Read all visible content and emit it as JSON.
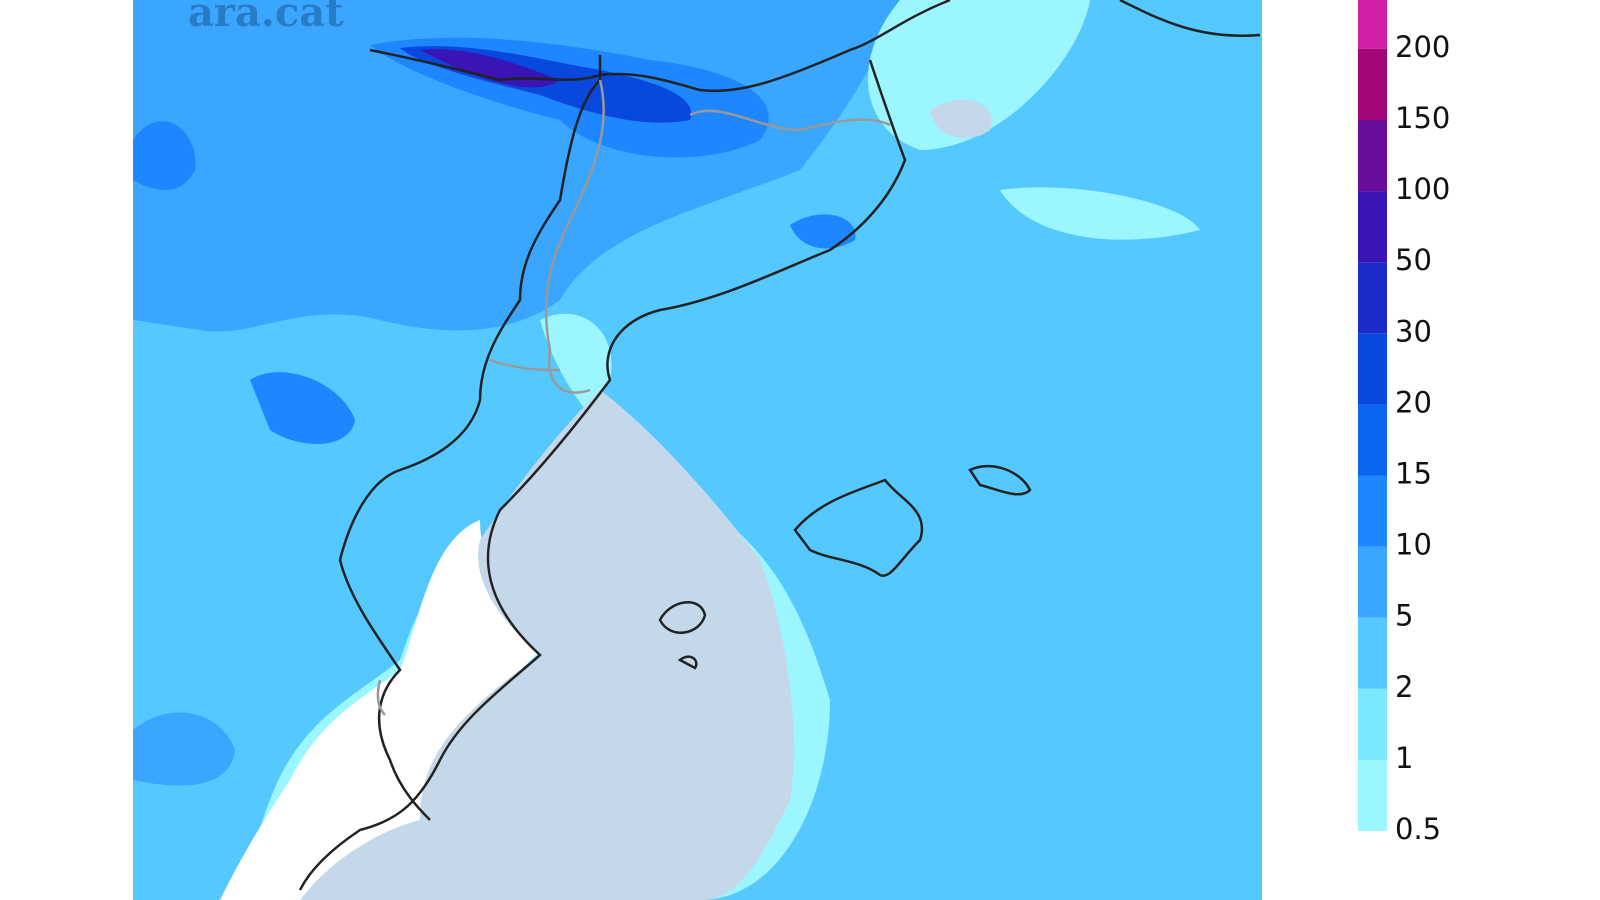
{
  "watermark": "ara.cat",
  "legend": {
    "ticks": [
      0.5,
      1,
      2,
      5,
      10,
      15,
      20,
      30,
      50,
      100,
      150,
      200
    ],
    "colors": [
      "#9cf6ff",
      "#7ae8ff",
      "#55c8ff",
      "#3aa6ff",
      "#1e86ff",
      "#0a66f0",
      "#0848dd",
      "#1a2bc8",
      "#3a14b4",
      "#6a0c9c",
      "#a00878",
      "#d020a8"
    ]
  }
}
